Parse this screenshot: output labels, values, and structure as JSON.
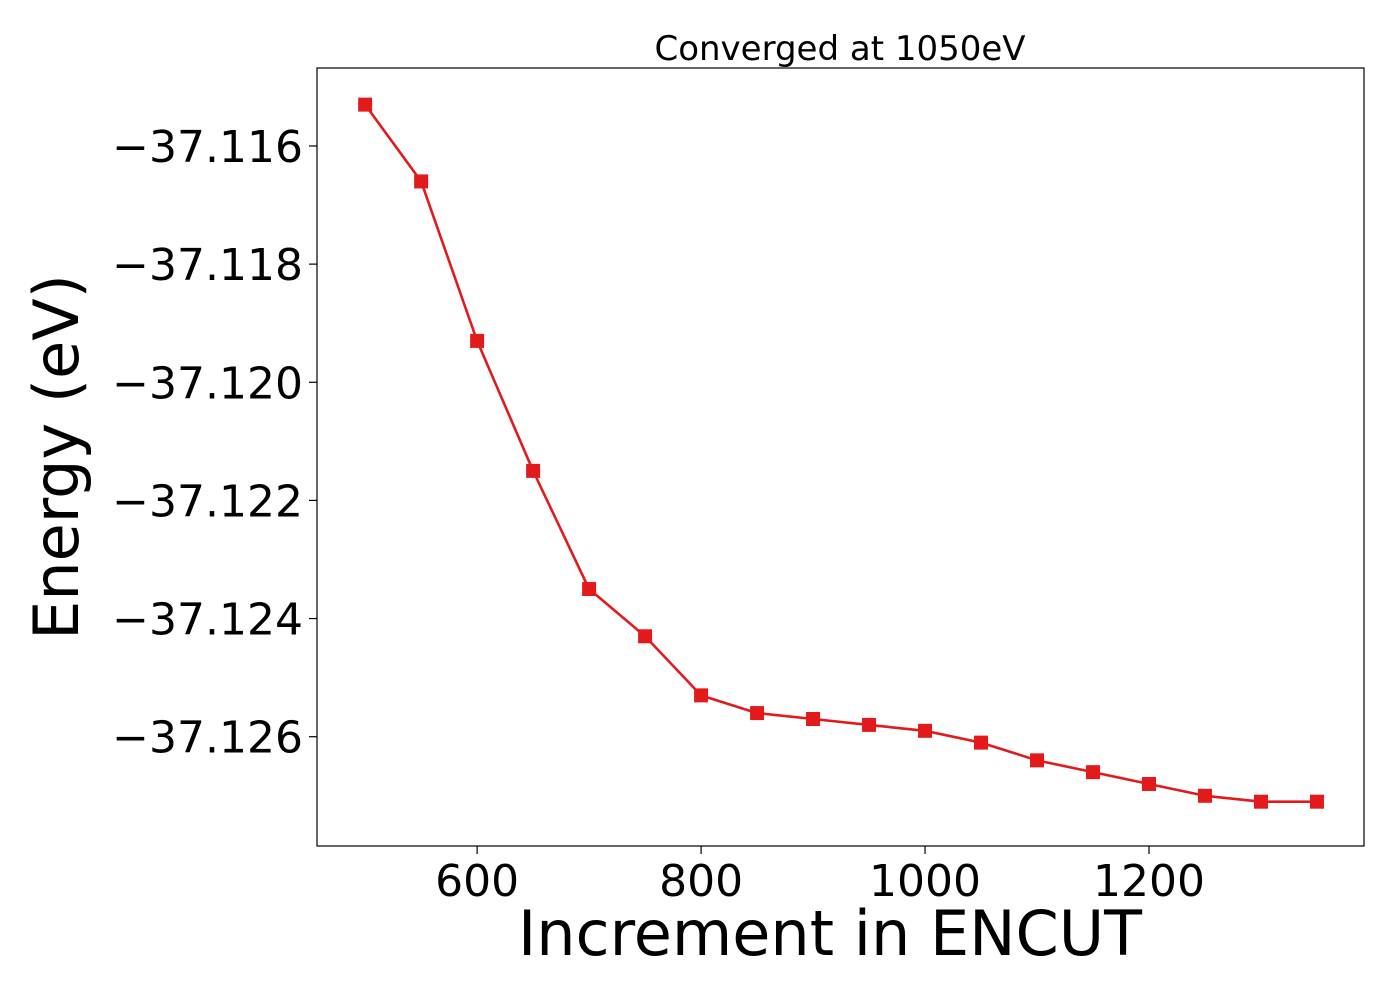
{
  "chart_data": {
    "type": "line",
    "title": "Converged at 1050eV",
    "xlabel": "Increment in ENCUT",
    "ylabel": "Energy (eV)",
    "xlim": [
      457,
      1392
    ],
    "ylim": [
      -37.12785,
      -37.11468
    ],
    "xticks": [
      600,
      800,
      1000,
      1200
    ],
    "xtick_labels": [
      "600",
      "800",
      "1000",
      "1200"
    ],
    "yticks": [
      -37.116,
      -37.118,
      -37.12,
      -37.122,
      -37.124,
      -37.126
    ],
    "ytick_labels": [
      "−37.116",
      "−37.118",
      "−37.120",
      "−37.122",
      "−37.124",
      "−37.126"
    ],
    "grid": false,
    "series": [
      {
        "color": "#e31a1c",
        "marker": "square",
        "x": [
          500,
          550,
          600,
          650,
          700,
          750,
          800,
          850,
          900,
          950,
          1000,
          1050,
          1100,
          1150,
          1200,
          1250,
          1300,
          1350
        ],
        "values": [
          -37.1153,
          -37.1166,
          -37.1193,
          -37.1215,
          -37.1235,
          -37.1243,
          -37.1253,
          -37.1256,
          -37.1257,
          -37.1258,
          -37.1259,
          -37.1261,
          -37.1264,
          -37.1266,
          -37.1268,
          -37.127,
          -37.1271,
          -37.1271
        ]
      }
    ]
  }
}
